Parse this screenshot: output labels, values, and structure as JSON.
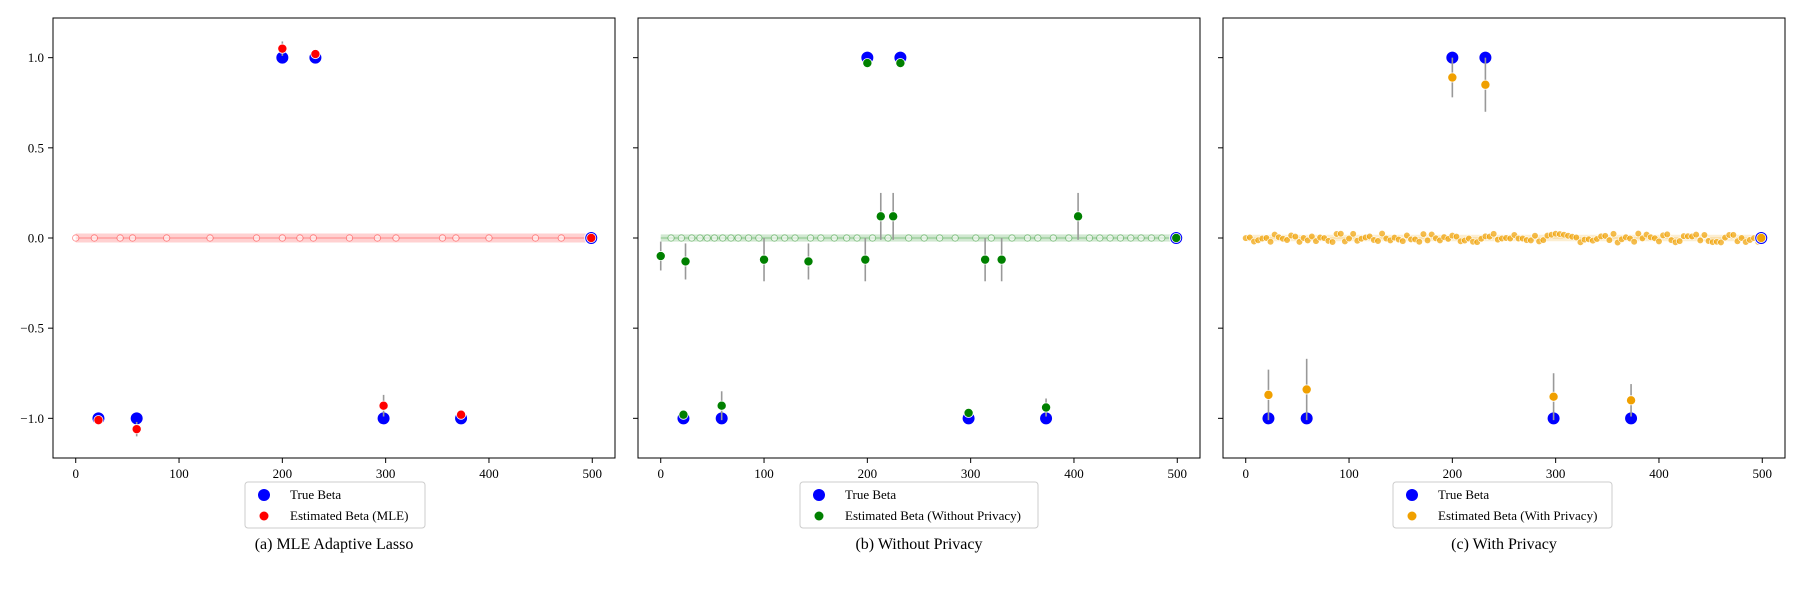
{
  "chart_data": [
    {
      "type": "scatter",
      "caption": "(a) MLE Adaptive Lasso",
      "xlim": [
        -22,
        522
      ],
      "ylim": [
        -1.22,
        1.22
      ],
      "xticks": [
        0,
        100,
        200,
        300,
        400,
        500
      ],
      "yticks": [
        1.0,
        0.5,
        0.0,
        -0.5,
        -1.0
      ],
      "ytick_labels": [
        "1.0",
        "0.5",
        "0.0",
        "−0.5",
        "−1.0"
      ],
      "grid": false,
      "legend_position": "below",
      "series": [
        {
          "name": "True Beta",
          "color": "#0000ff",
          "points": [
            [
              22,
              -1.0
            ],
            [
              59,
              -1.0
            ],
            [
              200,
              1.0
            ],
            [
              232,
              1.0
            ],
            [
              298,
              -1.0
            ],
            [
              373,
              -1.0
            ],
            [
              499,
              0.0
            ]
          ]
        },
        {
          "name": "Estimated Beta (MLE)",
          "color": "#ff0000",
          "points": [
            [
              22,
              -1.01,
              0.0
            ],
            [
              59,
              -1.06,
              0.04
            ],
            [
              200,
              1.05,
              0.04
            ],
            [
              232,
              1.02,
              0.02
            ],
            [
              298,
              -0.93,
              0.06
            ],
            [
              373,
              -0.98,
              0.01
            ],
            [
              499,
              0.0,
              0.0
            ]
          ],
          "band": {
            "from": 0,
            "to": 499,
            "y": 0.0,
            "halfwidth": 0.025
          },
          "zero_markers": [
            0,
            18,
            43,
            55,
            88,
            130,
            175,
            200,
            217,
            230,
            265,
            292,
            310,
            355,
            368,
            400,
            445,
            470
          ]
        }
      ]
    },
    {
      "type": "scatter",
      "caption": "(b) Without Privacy",
      "xlim": [
        -22,
        522
      ],
      "ylim": [
        -1.22,
        1.22
      ],
      "xticks": [
        0,
        100,
        200,
        300,
        400,
        500
      ],
      "yticks": [
        1.0,
        0.5,
        0.0,
        -0.5,
        -1.0
      ],
      "grid": false,
      "legend_position": "below",
      "series": [
        {
          "name": "True Beta",
          "color": "#0000ff",
          "points": [
            [
              22,
              -1.0
            ],
            [
              59,
              -1.0
            ],
            [
              200,
              1.0
            ],
            [
              232,
              1.0
            ],
            [
              298,
              -1.0
            ],
            [
              373,
              -1.0
            ],
            [
              499,
              0.0
            ]
          ]
        },
        {
          "name": "Estimated Beta (Without Privacy)",
          "color": "#008000",
          "points": [
            [
              0,
              -0.1,
              0.08
            ],
            [
              24,
              -0.13,
              0.1
            ],
            [
              100,
              -0.12,
              0.12
            ],
            [
              143,
              -0.13,
              0.1
            ],
            [
              198,
              -0.12,
              0.12
            ],
            [
              213,
              0.12,
              0.13
            ],
            [
              225,
              0.12,
              0.13
            ],
            [
              314,
              -0.12,
              0.12
            ],
            [
              330,
              -0.12,
              0.12
            ],
            [
              404,
              0.12,
              0.13
            ],
            [
              22,
              -0.98,
              0.02
            ],
            [
              59,
              -0.93,
              0.08
            ],
            [
              200,
              0.97,
              0.02
            ],
            [
              232,
              0.97,
              0.02
            ],
            [
              298,
              -0.97,
              0.02
            ],
            [
              373,
              -0.94,
              0.05
            ],
            [
              499,
              0.0,
              0.0
            ]
          ],
          "band": {
            "from": 0,
            "to": 499,
            "y": 0.0,
            "halfwidth": 0.02
          },
          "zero_markers": [
            10,
            20,
            30,
            38,
            45,
            52,
            60,
            68,
            75,
            85,
            95,
            110,
            120,
            130,
            145,
            155,
            168,
            180,
            190,
            205,
            220,
            240,
            255,
            270,
            285,
            305,
            320,
            340,
            355,
            365,
            380,
            395,
            415,
            425,
            435,
            445,
            455,
            465,
            475,
            485
          ]
        }
      ]
    },
    {
      "type": "scatter",
      "caption": "(c) With Privacy",
      "xlim": [
        -22,
        522
      ],
      "ylim": [
        -1.22,
        1.22
      ],
      "xticks": [
        0,
        100,
        200,
        300,
        400,
        500
      ],
      "yticks": [
        1.0,
        0.5,
        0.0,
        -0.5,
        -1.0
      ],
      "grid": false,
      "legend_position": "below",
      "series": [
        {
          "name": "True Beta",
          "color": "#0000ff",
          "points": [
            [
              22,
              -1.0
            ],
            [
              59,
              -1.0
            ],
            [
              200,
              1.0
            ],
            [
              232,
              1.0
            ],
            [
              298,
              -1.0
            ],
            [
              373,
              -1.0
            ],
            [
              499,
              0.0
            ]
          ]
        },
        {
          "name": "Estimated Beta (With Privacy)",
          "color": "#f0a000",
          "points": [
            [
              22,
              -0.87,
              0.14
            ],
            [
              59,
              -0.84,
              0.17
            ],
            [
              200,
              0.89,
              0.11
            ],
            [
              232,
              0.85,
              0.15
            ],
            [
              298,
              -0.88,
              0.13
            ],
            [
              373,
              -0.9,
              0.09
            ],
            [
              499,
              0.0,
              0.0
            ]
          ],
          "band": {
            "from": 0,
            "to": 499,
            "y": 0.0,
            "halfwidth": 0.018
          },
          "noise_cloud": {
            "from": 0,
            "to": 499,
            "step": 4,
            "amplitude": 0.025
          }
        }
      ]
    }
  ]
}
